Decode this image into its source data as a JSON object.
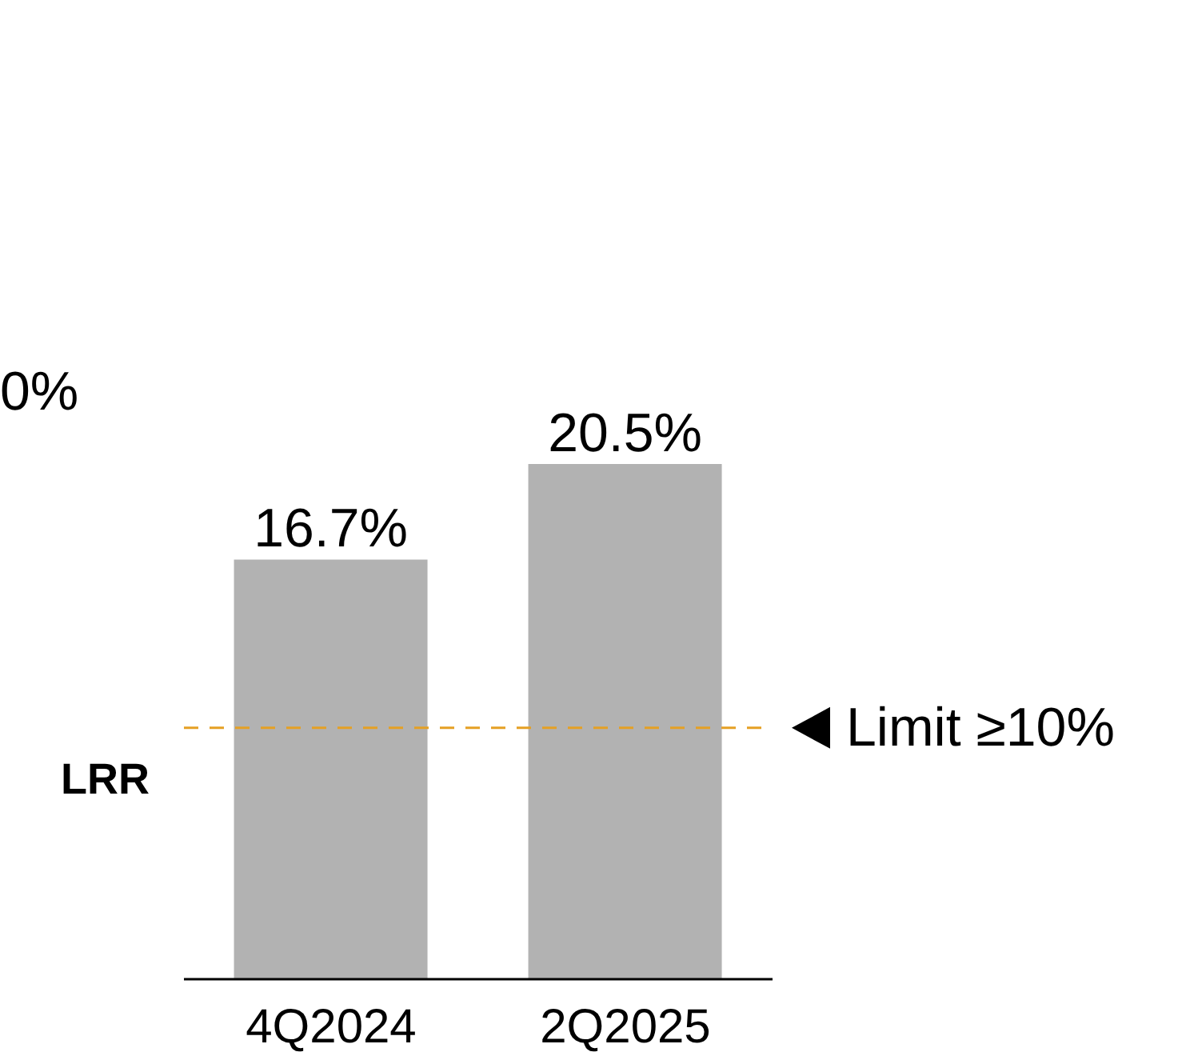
{
  "chart_data": {
    "type": "bar",
    "categories": [
      "4Q2024",
      "2Q2025"
    ],
    "values": [
      16.7,
      20.5
    ],
    "value_labels": [
      "16.7%",
      "20.5%"
    ],
    "color": "#b2b2b2",
    "ylabel": "LRR",
    "tick_labels": "x",
    "ref_lines": [
      {
        "axis": "y",
        "value": 10,
        "label": "Limit ≥10%",
        "color": "#e5a024",
        "line_style": "dashed"
      }
    ],
    "annotations": [
      "0%"
    ]
  }
}
